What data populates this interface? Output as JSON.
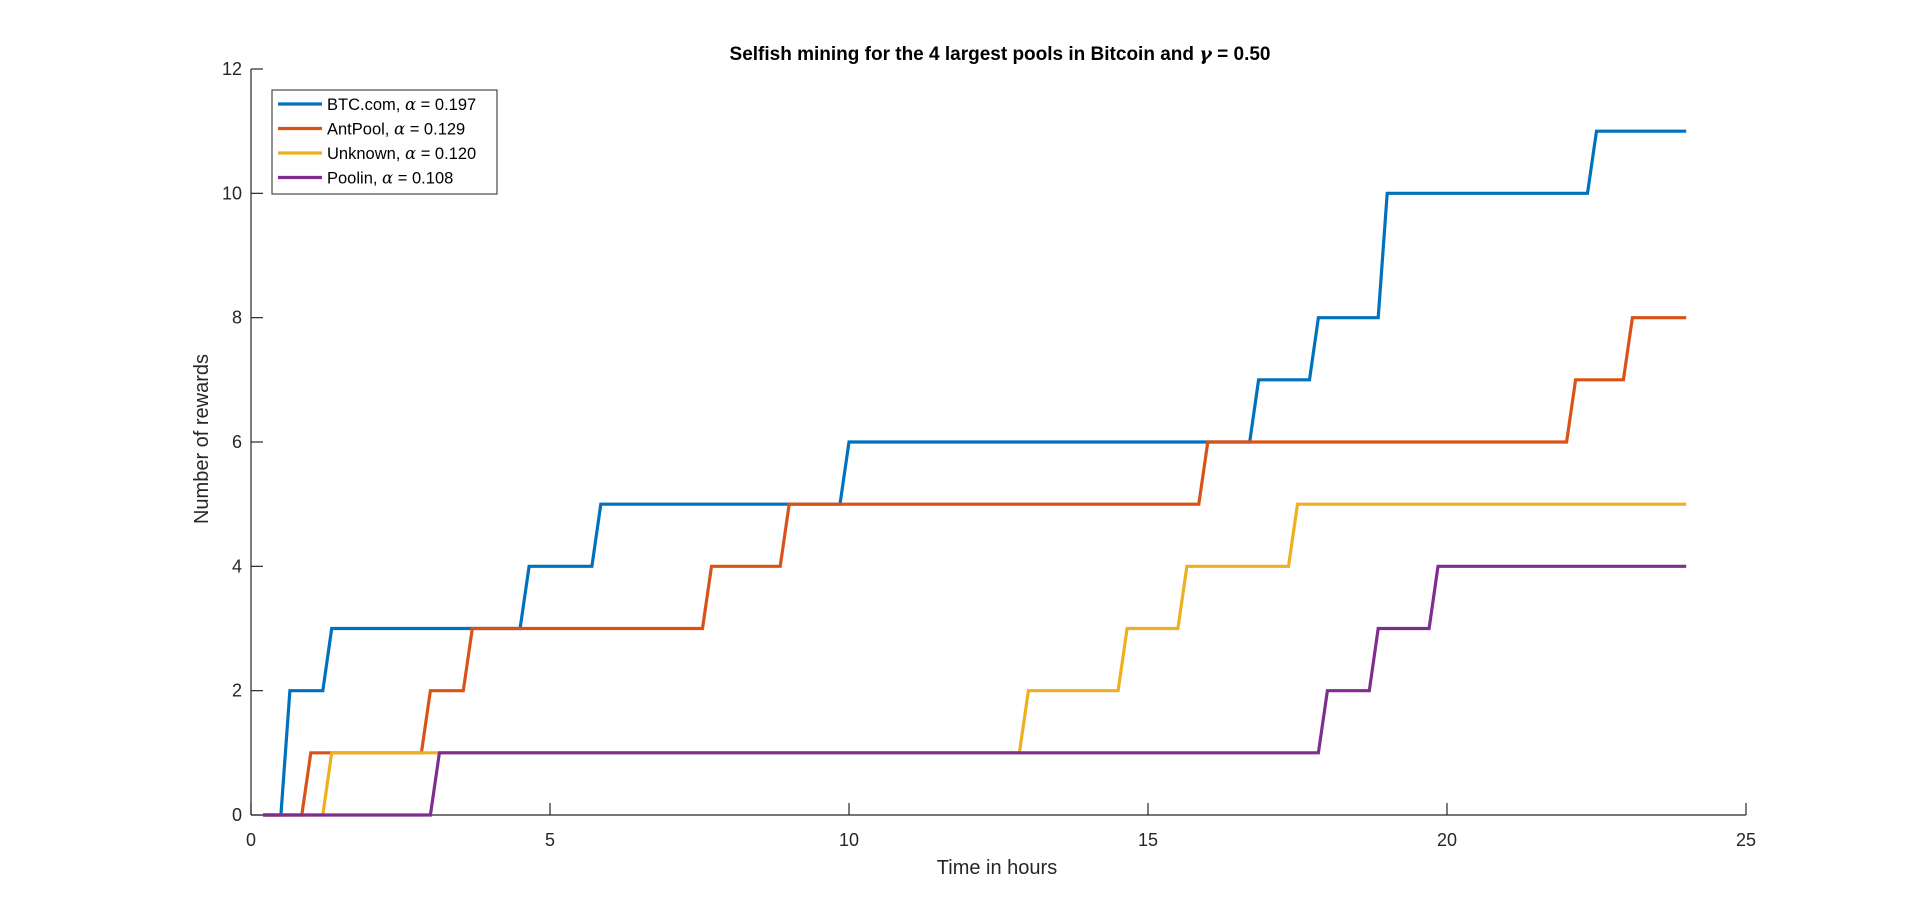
{
  "chart_data": {
    "type": "line",
    "title": "Selfish mining for the 4 largest pools in Bitcoin and γ = 0.50",
    "title_parts": {
      "before": "Selfish mining for the 4 largest pools in Bitcoin and ",
      "symbol": "γ",
      "after": " = 0.50"
    },
    "xlabel": "Time in hours",
    "ylabel": "Number of rewards",
    "xlim": [
      0,
      25
    ],
    "ylim": [
      0,
      12
    ],
    "xticks": [
      "0",
      "5",
      "10",
      "15",
      "20",
      "25"
    ],
    "yticks": [
      "0",
      "2",
      "4",
      "6",
      "8",
      "10",
      "12"
    ],
    "grid": false,
    "legend_position": "top-left",
    "series": [
      {
        "name": "BTC.com, α = 0.197",
        "label_before": "BTC.com, ",
        "symbol": "α",
        "label_after": " = 0.197",
        "color": "#0072BD",
        "x": [
          0.2,
          0.5,
          0.65,
          1.2,
          1.35,
          4.5,
          4.65,
          5.7,
          5.85,
          9.85,
          10.0,
          16.7,
          16.85,
          17.7,
          17.85,
          18.3,
          18.45,
          18.85,
          19.0,
          22.35,
          22.5,
          24.0
        ],
        "y": [
          0,
          0,
          2,
          2,
          3,
          3,
          4,
          4,
          5,
          5,
          6,
          6,
          7,
          7,
          8,
          8,
          8,
          8,
          10,
          10,
          11,
          11
        ]
      },
      {
        "name": "AntPool, α = 0.129",
        "label_before": "AntPool, ",
        "symbol": "α",
        "label_after": " = 0.129",
        "color": "#D95319",
        "x": [
          0.2,
          0.85,
          1.0,
          2.85,
          3.0,
          3.55,
          3.7,
          7.55,
          7.7,
          8.85,
          9.0,
          15.85,
          16.0,
          22.0,
          22.15,
          22.95,
          23.1,
          24.0
        ],
        "y": [
          0,
          0,
          1,
          1,
          2,
          2,
          3,
          3,
          4,
          4,
          5,
          5,
          6,
          6,
          7,
          7,
          8,
          8
        ]
      },
      {
        "name": "Unknown, α = 0.120",
        "label_before": "Unknown, ",
        "symbol": "α",
        "label_after": " = 0.120",
        "color": "#EDB120",
        "x": [
          0.2,
          1.2,
          1.35,
          12.85,
          13.0,
          14.5,
          14.65,
          15.5,
          15.65,
          17.35,
          17.5,
          24.0
        ],
        "y": [
          0,
          0,
          1,
          1,
          2,
          2,
          3,
          3,
          4,
          4,
          5,
          5
        ]
      },
      {
        "name": "Poolin, α = 0.108",
        "label_before": "Poolin, ",
        "symbol": "α",
        "label_after": " = 0.108",
        "color": "#7E2F8E",
        "x": [
          0.2,
          3.0,
          3.15,
          17.85,
          18.0,
          18.7,
          18.85,
          19.7,
          19.85,
          24.0
        ],
        "y": [
          0,
          0,
          1,
          1,
          2,
          2,
          3,
          3,
          4,
          4
        ]
      }
    ]
  }
}
